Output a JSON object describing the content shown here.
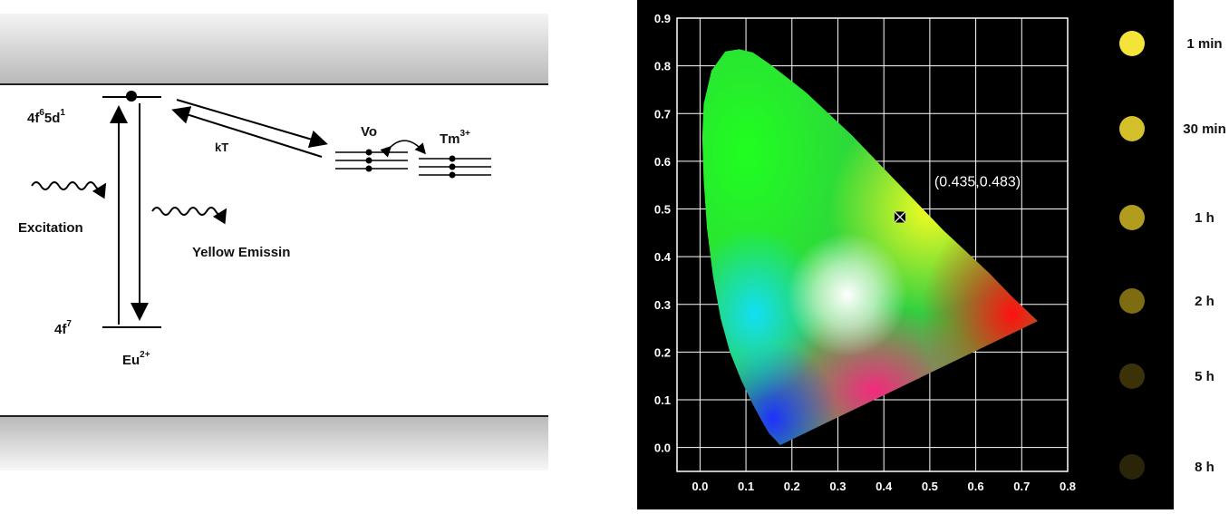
{
  "diagram": {
    "excited_level": "4f",
    "excited_level_sup1": "6",
    "excited_level_mid": "5d",
    "excited_level_sup2": "1",
    "ground_level": "4f",
    "ground_level_sup": "7",
    "ion": "Eu",
    "ion_charge": "2+",
    "thermal_label": "kT",
    "excitation_label": "Excitation",
    "emission_label": "Yellow Emissin",
    "vacancy_label": "Vo",
    "trap_ion": "Tm",
    "trap_ion_charge": "3+"
  },
  "chart_data": {
    "type": "scatter",
    "subtype": "CIE 1931 chromaticity diagram",
    "point": {
      "x": 0.435,
      "y": 0.483
    },
    "annotation": "(0.435,0.483)",
    "xlim": [
      -0.05,
      0.8
    ],
    "ylim": [
      -0.05,
      0.9
    ],
    "x_ticks": [
      "0.0",
      "0.1",
      "0.2",
      "0.3",
      "0.4",
      "0.5",
      "0.6",
      "0.7",
      "0.8"
    ],
    "y_ticks": [
      "0.0",
      "0.1",
      "0.2",
      "0.3",
      "0.4",
      "0.5",
      "0.6",
      "0.7",
      "0.8",
      "0.9"
    ],
    "grid": true,
    "background": "#000000"
  },
  "afterglow": {
    "items": [
      {
        "label": "1 min",
        "color": "#f4e43a"
      },
      {
        "label": "30 min",
        "color": "#d4c02a"
      },
      {
        "label": "1 h",
        "color": "#b29c1e"
      },
      {
        "label": "2 h",
        "color": "#7d6c12"
      },
      {
        "label": "5 h",
        "color": "#3b3208"
      },
      {
        "label": "8 h",
        "color": "#2a2408"
      }
    ]
  }
}
